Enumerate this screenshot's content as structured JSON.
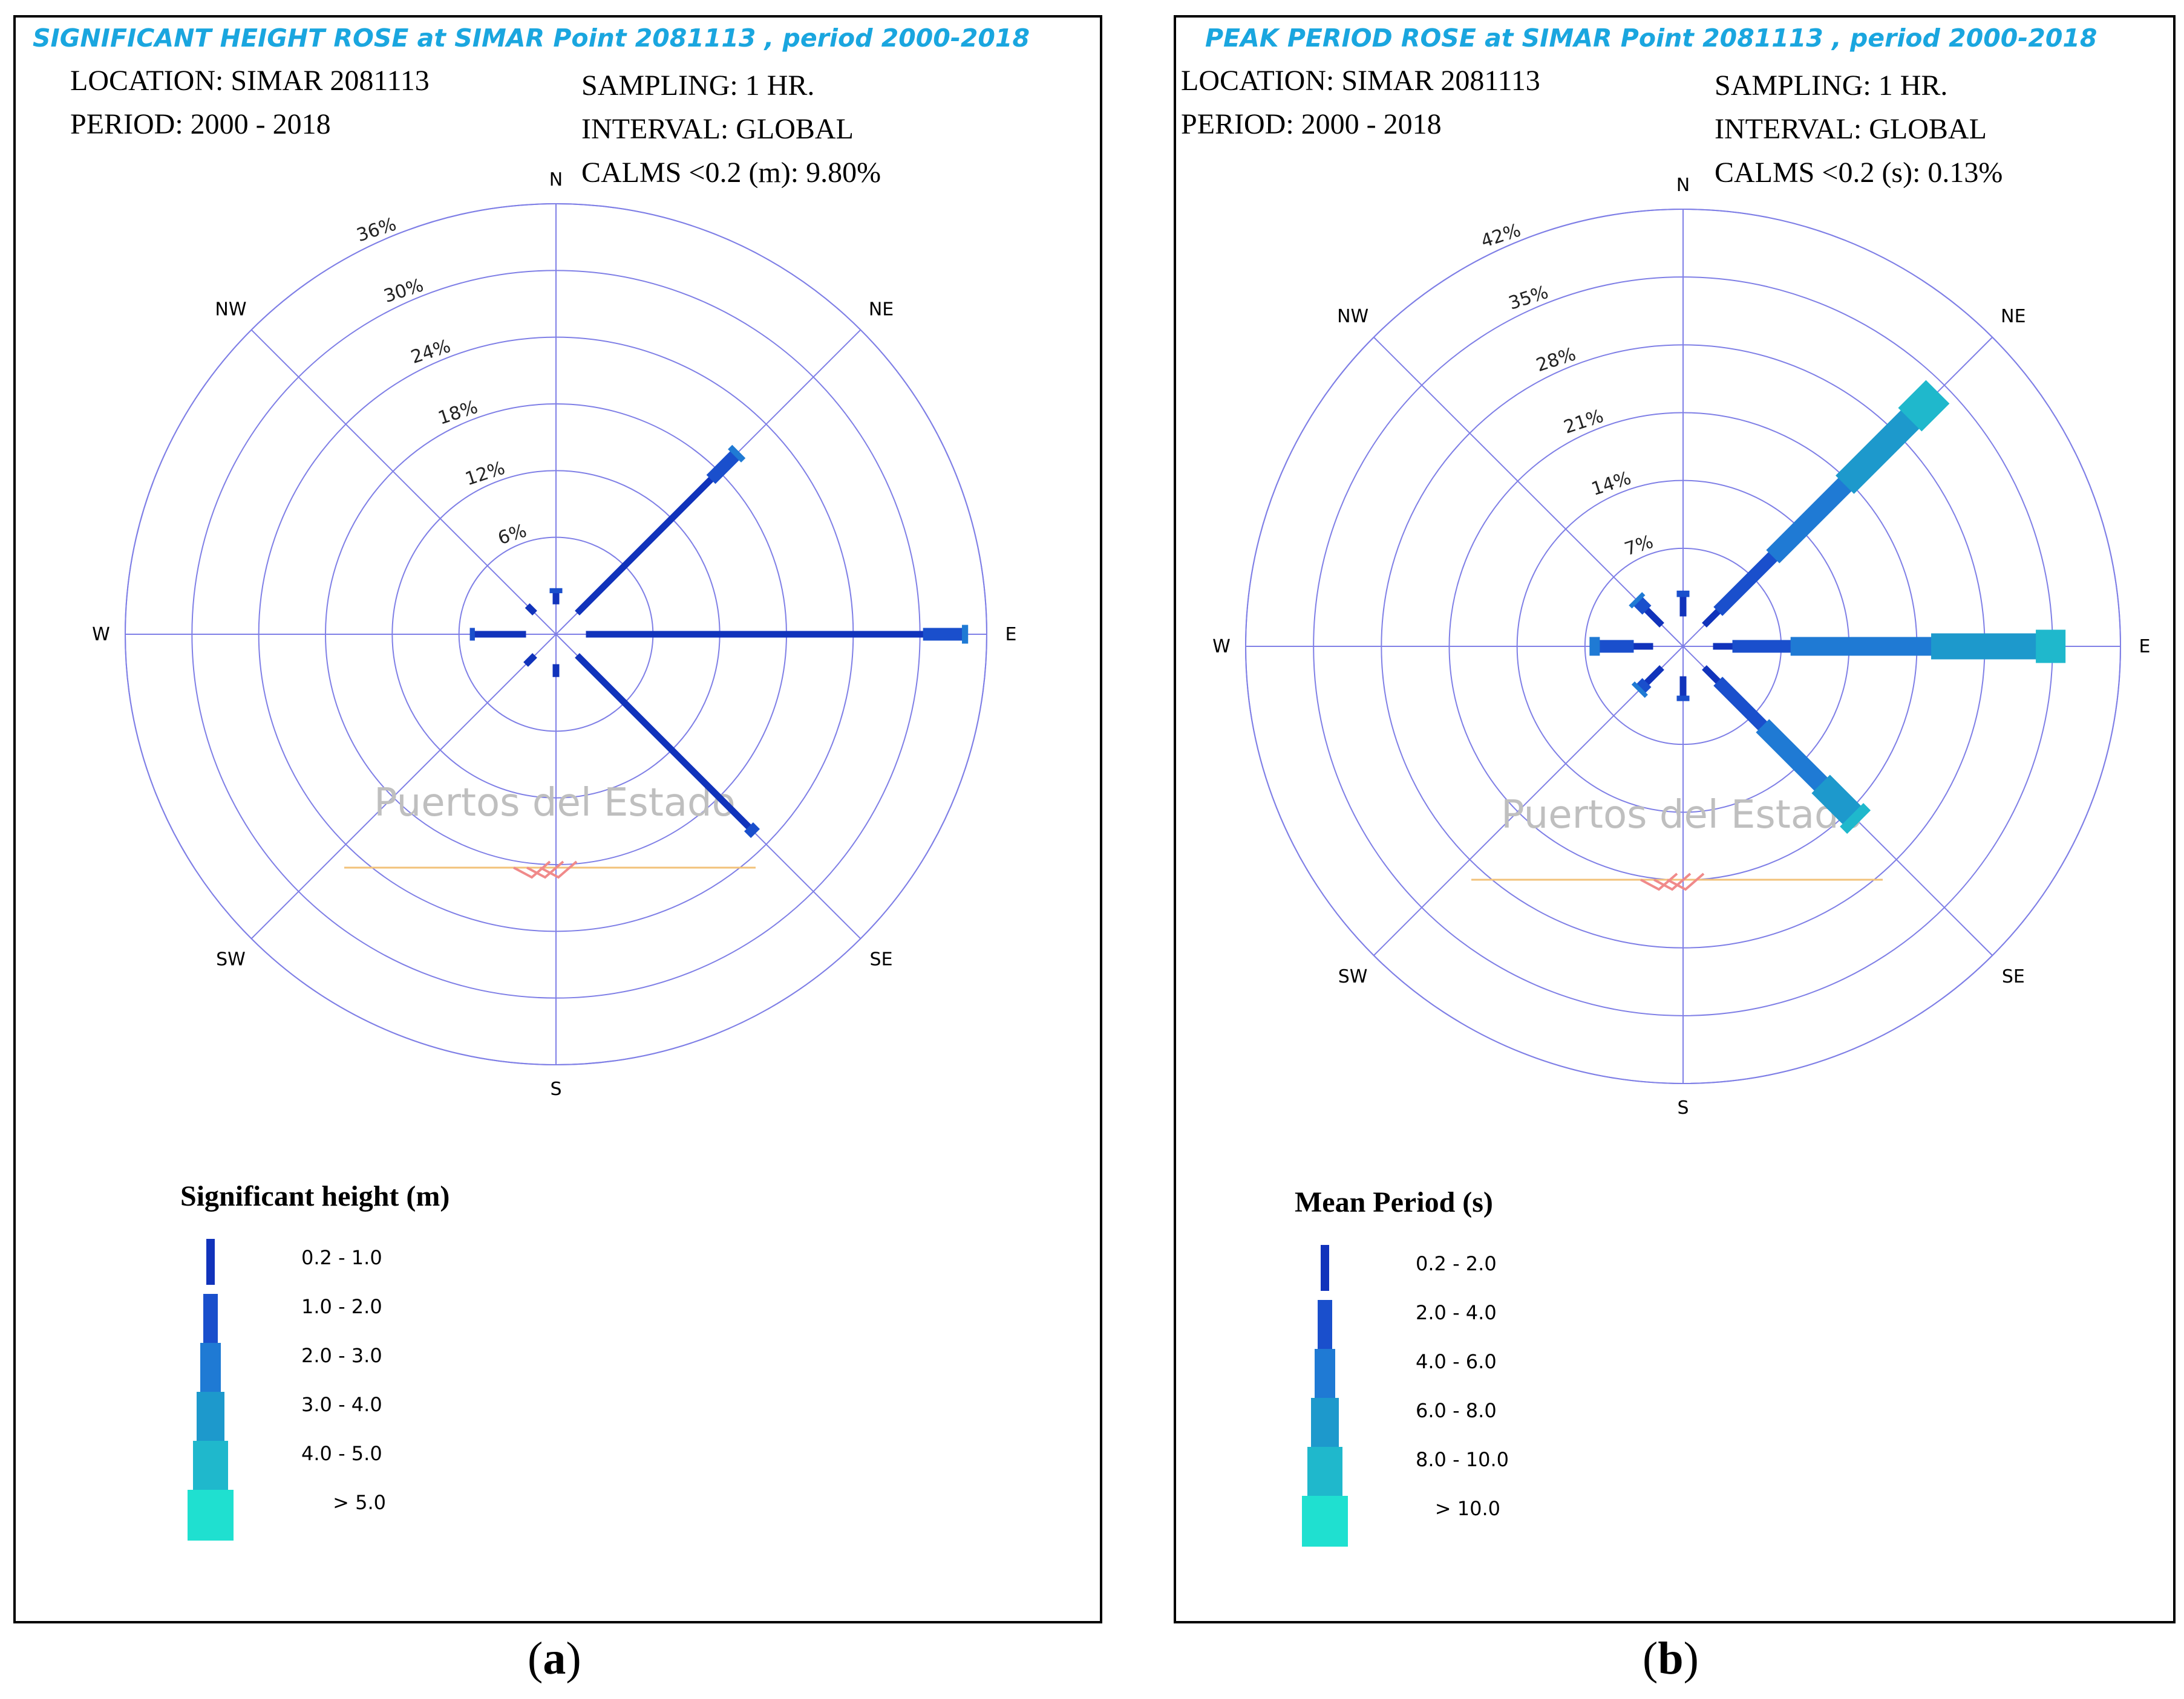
{
  "chart_data": [
    {
      "type": "polar-bar",
      "id": "a",
      "title": "SIGNIFICANT HEIGHT ROSE at SIMAR Point 2081113 , period 2000-2018",
      "info": {
        "location": "LOCATION: SIMAR 2081113",
        "period": "PERIOD: 2000 - 2018",
        "sampling": "SAMPLING: 1 HR.",
        "interval": "INTERVAL: GLOBAL",
        "calms": "CALMS <0.2 (m): 9.80%"
      },
      "directions": [
        "N",
        "NE",
        "E",
        "SE",
        "S",
        "SW",
        "W",
        "NW"
      ],
      "rings": [
        6,
        12,
        18,
        24,
        30,
        36
      ],
      "ring_labels": [
        "6%",
        "12%",
        "18%",
        "24%",
        "30%",
        "36%"
      ],
      "ring_max": 36,
      "legend_title": "Significant height (m)",
      "bins": [
        "0.2 -  1.0",
        "1.0 -  2.0",
        "2.0 -  3.0",
        "3.0 -  4.0",
        "4.0 -  5.0",
        "> 5.0"
      ],
      "colors": [
        "#1133bb",
        "#1a4fcc",
        "#1f7ad4",
        "#1d99cc",
        "#1fb8cc",
        "#1fe0d0"
      ],
      "sectors": [
        {
          "dir": 0,
          "segments": [
            1.0,
            0.4
          ]
        },
        {
          "dir": 45,
          "segments": [
            17.0,
            3.0,
            0.5
          ]
        },
        {
          "dir": 90,
          "segments": [
            30.3,
            3.5,
            0.5
          ]
        },
        {
          "dir": 135,
          "segments": [
            21.8,
            0.8
          ]
        },
        {
          "dir": 180,
          "segments": [
            1.1
          ]
        },
        {
          "dir": 225,
          "segments": [
            1.1
          ]
        },
        {
          "dir": 270,
          "segments": [
            4.6,
            0.4
          ]
        },
        {
          "dir": 315,
          "segments": [
            0.9
          ]
        }
      ],
      "watermark": "Puertos del Estado",
      "caption": "a"
    },
    {
      "type": "polar-bar",
      "id": "b",
      "title": "PEAK PERIOD ROSE at SIMAR Point 2081113 , period 2000-2018",
      "info": {
        "location": "LOCATION: SIMAR 2081113",
        "period": "PERIOD: 2000 - 2018",
        "sampling": "SAMPLING: 1 HR.",
        "interval": "INTERVAL: GLOBAL",
        "calms": "CALMS <0.2 (s): 0.13%"
      },
      "directions": [
        "N",
        "NE",
        "E",
        "SE",
        "S",
        "SW",
        "W",
        "NW"
      ],
      "rings": [
        7,
        14,
        21,
        28,
        35,
        42
      ],
      "ring_labels": [
        "7%",
        "14%",
        "21%",
        "28%",
        "35%",
        "42%"
      ],
      "ring_max": 42,
      "legend_title": "Mean Period (s)",
      "bins": [
        "0.2 -  2.0",
        "2.0 -  4.0",
        "4.0 -  6.0",
        "6.0 -  8.0",
        "8.0 - 10.0",
        "> 10.0"
      ],
      "colors": [
        "#1133bb",
        "#1a4fcc",
        "#1f7ad4",
        "#1d99cc",
        "#1fb8cc",
        "#1fe0d0"
      ],
      "sectors": [
        {
          "dir": 0,
          "segments": [
            2.0,
            0.6
          ]
        },
        {
          "dir": 45,
          "segments": [
            2.0,
            8.0,
            10.5,
            9.5,
            4.0
          ]
        },
        {
          "dir": 90,
          "segments": [
            2.0,
            6.0,
            14.5,
            10.8,
            3.0
          ]
        },
        {
          "dir": 135,
          "segments": [
            2.0,
            6.5,
            8.5,
            4.5,
            1.0
          ]
        },
        {
          "dir": 180,
          "segments": [
            2.0,
            0.5
          ]
        },
        {
          "dir": 225,
          "segments": [
            2.2,
            0.8,
            0.4
          ]
        },
        {
          "dir": 270,
          "segments": [
            2.0,
            3.5,
            1.0
          ]
        },
        {
          "dir": 315,
          "segments": [
            2.2,
            1.2,
            0.4
          ]
        }
      ],
      "watermark": "Puertos del Estado",
      "caption": "b"
    }
  ]
}
